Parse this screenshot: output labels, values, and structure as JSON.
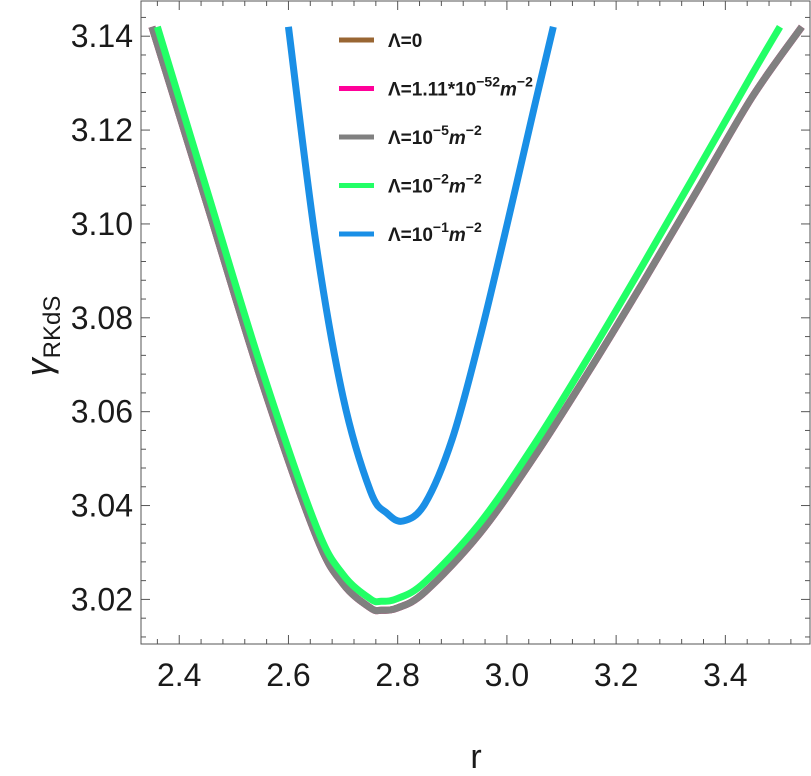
{
  "chart_data": {
    "type": "line",
    "xlabel": "r",
    "ylabel": "γ",
    "ylabel_sub": "RKdS",
    "xlim": [
      2.33,
      3.555
    ],
    "ylim": [
      3.0105,
      3.1475
    ],
    "xticks": [
      2.4,
      2.6,
      2.8,
      3.0,
      3.2,
      3.4
    ],
    "xtick_labels": [
      "2.4",
      "2.6",
      "2.8",
      "3.0",
      "3.2",
      "3.4"
    ],
    "yticks": [
      3.02,
      3.04,
      3.06,
      3.08,
      3.1,
      3.12,
      3.14
    ],
    "ytick_labels": [
      "3.02",
      "3.04",
      "3.06",
      "3.08",
      "3.10",
      "3.12",
      "3.14"
    ],
    "legend_position": "top-center",
    "series": [
      {
        "name": "Λ=0",
        "legend_base": "Λ=0",
        "legend_sup": "",
        "legend_unit": "",
        "legend_unit_sup": "",
        "color": "#996633",
        "x": [
          2.35,
          2.45,
          2.55,
          2.65,
          2.7,
          2.75,
          2.77,
          2.8,
          2.85,
          2.95,
          3.05,
          3.15,
          3.25,
          3.35,
          3.45,
          3.54
        ],
        "y": [
          3.142,
          3.1045,
          3.0668,
          3.0337,
          3.0233,
          3.0182,
          3.0177,
          3.0182,
          3.0216,
          3.034,
          3.0504,
          3.0686,
          3.0877,
          3.1074,
          3.1272,
          3.142
        ]
      },
      {
        "name": "Λ=1.11*10−52m−2",
        "legend_base": "Λ=1.11*10",
        "legend_sup": "−52",
        "legend_unit": "m",
        "legend_unit_sup": "−2",
        "color": "#ff0099",
        "x": [
          2.35,
          2.45,
          2.55,
          2.65,
          2.7,
          2.75,
          2.77,
          2.8,
          2.85,
          2.95,
          3.05,
          3.15,
          3.25,
          3.35,
          3.45,
          3.54
        ],
        "y": [
          3.142,
          3.1045,
          3.0668,
          3.0337,
          3.0233,
          3.0182,
          3.0177,
          3.0182,
          3.0216,
          3.034,
          3.0504,
          3.0686,
          3.0877,
          3.1074,
          3.1272,
          3.142
        ]
      },
      {
        "name": "Λ=10−5m−2",
        "legend_base": "Λ=10",
        "legend_sup": "−5",
        "legend_unit": "m",
        "legend_unit_sup": "−2",
        "color": "#808080",
        "x": [
          2.35,
          2.45,
          2.55,
          2.65,
          2.7,
          2.75,
          2.77,
          2.8,
          2.85,
          2.95,
          3.05,
          3.15,
          3.25,
          3.35,
          3.45,
          3.54
        ],
        "y": [
          3.142,
          3.1045,
          3.0668,
          3.0337,
          3.0233,
          3.0182,
          3.0177,
          3.0182,
          3.0216,
          3.034,
          3.0504,
          3.0686,
          3.0877,
          3.1074,
          3.1272,
          3.142
        ]
      },
      {
        "name": "Λ=10−2m−2",
        "legend_base": "Λ=10",
        "legend_sup": "−2",
        "legend_unit": "m",
        "legend_unit_sup": "−2",
        "color": "#22ff66",
        "x": [
          2.36,
          2.45,
          2.55,
          2.65,
          2.7,
          2.75,
          2.77,
          2.8,
          2.85,
          2.95,
          3.05,
          3.15,
          3.25,
          3.35,
          3.45,
          3.5
        ],
        "y": [
          3.142,
          3.1075,
          3.0695,
          3.0358,
          3.0253,
          3.0201,
          3.0196,
          3.0202,
          3.0237,
          3.0362,
          3.053,
          3.0718,
          3.0915,
          3.1117,
          3.1321,
          3.142
        ]
      },
      {
        "name": "Λ=10−1m−2",
        "legend_base": "Λ=10",
        "legend_sup": "−1",
        "legend_unit": "m",
        "legend_unit_sup": "−2",
        "color": "#1a8fe6",
        "x": [
          2.6,
          2.65,
          2.7,
          2.75,
          2.78,
          2.81,
          2.85,
          2.9,
          2.95,
          3.0,
          3.05,
          3.085
        ],
        "y": [
          3.142,
          3.0962,
          3.0631,
          3.0431,
          3.0384,
          3.0367,
          3.0404,
          3.0542,
          3.0755,
          3.0997,
          3.1248,
          3.142
        ]
      }
    ]
  }
}
